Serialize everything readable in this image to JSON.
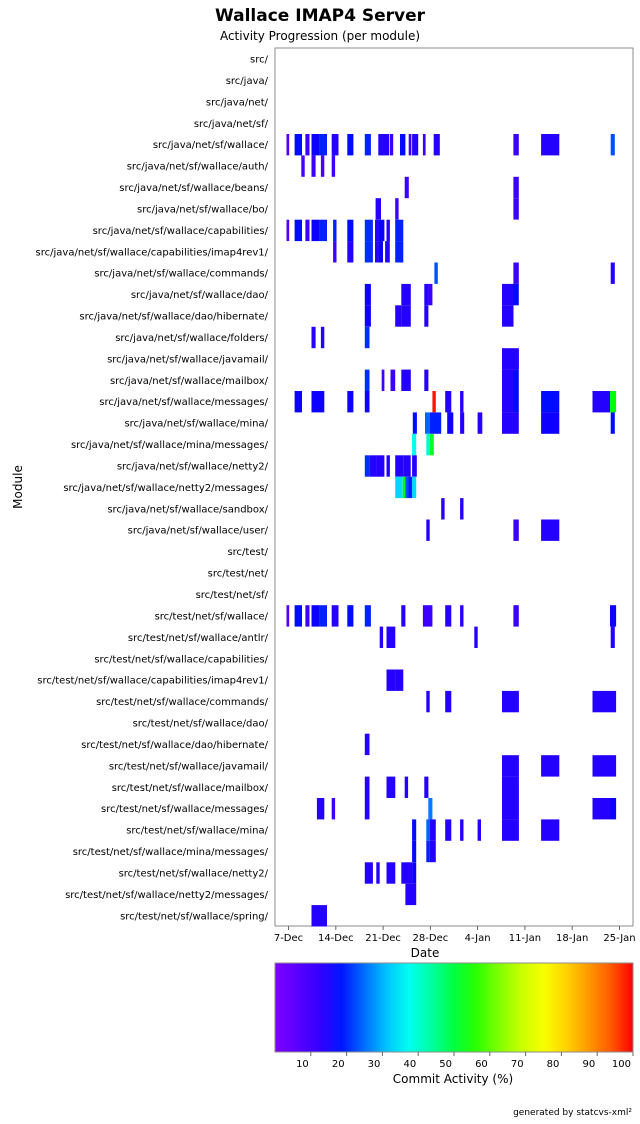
{
  "chart_data": {
    "type": "heatmap",
    "title": "Wallace IMAP4 Server",
    "subtitle": "Activity Progression (per module)",
    "xlabel": "Date",
    "ylabel": "Module",
    "colorbar_label": "Commit Activity (%)",
    "colorbar_ticks": [
      "10",
      "20",
      "30",
      "40",
      "50",
      "60",
      "70",
      "80",
      "90",
      "100"
    ],
    "x_tick_labels": [
      "7-Dec",
      "14-Dec",
      "21-Dec",
      "28-Dec",
      "4-Jan",
      "11-Jan",
      "18-Jan",
      "25-Jan"
    ],
    "x_range_days": [
      -2,
      51
    ],
    "modules": [
      "src/",
      "src/java/",
      "src/java/net/",
      "src/java/net/sf/",
      "src/java/net/sf/wallace/",
      "src/java/net/sf/wallace/auth/",
      "src/java/net/sf/wallace/beans/",
      "src/java/net/sf/wallace/bo/",
      "src/java/net/sf/wallace/capabilities/",
      "src/java/net/sf/wallace/capabilities/imap4rev1/",
      "src/java/net/sf/wallace/commands/",
      "src/java/net/sf/wallace/dao/",
      "src/java/net/sf/wallace/dao/hibernate/",
      "src/java/net/sf/wallace/folders/",
      "src/java/net/sf/wallace/javamail/",
      "src/java/net/sf/wallace/mailbox/",
      "src/java/net/sf/wallace/messages/",
      "src/java/net/sf/wallace/mina/",
      "src/java/net/sf/wallace/mina/messages/",
      "src/java/net/sf/wallace/netty2/",
      "src/java/net/sf/wallace/netty2/messages/",
      "src/java/net/sf/wallace/sandbox/",
      "src/java/net/sf/wallace/user/",
      "src/test/",
      "src/test/net/",
      "src/test/net/sf/",
      "src/test/net/sf/wallace/",
      "src/test/net/sf/wallace/antlr/",
      "src/test/net/sf/wallace/capabilities/",
      "src/test/net/sf/wallace/capabilities/imap4rev1/",
      "src/test/net/sf/wallace/commands/",
      "src/test/net/sf/wallace/dao/",
      "src/test/net/sf/wallace/dao/hibernate/",
      "src/test/net/sf/wallace/javamail/",
      "src/test/net/sf/wallace/mailbox/",
      "src/test/net/sf/wallace/messages/",
      "src/test/net/sf/wallace/mina/",
      "src/test/net/sf/wallace/mina/messages/",
      "src/test/net/sf/wallace/netty2/",
      "src/test/net/sf/wallace/netty2/messages/",
      "src/test/net/sf/wallace/spring/"
    ],
    "cells_note": "[module_index, start_day, end_day, activity_percent]; day 0 = 7-Dec",
    "cells": [
      [
        4,
        -0.3,
        0.1,
        4
      ],
      [
        4,
        0.9,
        2.0,
        12
      ],
      [
        4,
        2.5,
        3.1,
        6
      ],
      [
        4,
        3.4,
        4.6,
        10
      ],
      [
        4,
        4.6,
        5.7,
        14
      ],
      [
        4,
        6.4,
        7.4,
        8
      ],
      [
        4,
        8.7,
        9.6,
        12
      ],
      [
        4,
        11.3,
        12.2,
        14
      ],
      [
        4,
        13.3,
        14.9,
        8
      ],
      [
        4,
        15.0,
        15.5,
        6
      ],
      [
        4,
        16.5,
        17.3,
        12
      ],
      [
        4,
        17.8,
        18.2,
        6
      ],
      [
        4,
        18.3,
        19.2,
        8
      ],
      [
        4,
        19.9,
        20.3,
        6
      ],
      [
        4,
        21.5,
        22.4,
        8
      ],
      [
        4,
        33.3,
        34.1,
        6
      ],
      [
        4,
        37.4,
        40.1,
        8
      ],
      [
        4,
        47.7,
        48.3,
        18
      ],
      [
        5,
        1.9,
        2.4,
        5
      ],
      [
        5,
        3.4,
        4.0,
        6
      ],
      [
        5,
        4.8,
        5.3,
        5
      ],
      [
        5,
        6.4,
        6.9,
        6
      ],
      [
        6,
        17.2,
        17.8,
        6
      ],
      [
        6,
        33.3,
        34.1,
        6
      ],
      [
        7,
        12.9,
        13.7,
        8
      ],
      [
        7,
        15.8,
        16.3,
        6
      ],
      [
        7,
        33.3,
        34.1,
        6
      ],
      [
        8,
        -0.3,
        0.1,
        4
      ],
      [
        8,
        0.9,
        2.0,
        12
      ],
      [
        8,
        2.5,
        3.1,
        6
      ],
      [
        8,
        3.4,
        4.6,
        10
      ],
      [
        8,
        4.6,
        5.7,
        14
      ],
      [
        8,
        6.6,
        7.1,
        14
      ],
      [
        8,
        8.7,
        9.6,
        12
      ],
      [
        8,
        11.3,
        12.5,
        15
      ],
      [
        8,
        12.8,
        13.3,
        8
      ],
      [
        8,
        13.3,
        14.2,
        10
      ],
      [
        8,
        14.5,
        15.0,
        8
      ],
      [
        8,
        15.8,
        17.0,
        14
      ],
      [
        9,
        6.6,
        7.1,
        6
      ],
      [
        9,
        8.7,
        9.6,
        8
      ],
      [
        9,
        11.3,
        12.5,
        15
      ],
      [
        9,
        12.8,
        13.3,
        8
      ],
      [
        9,
        13.3,
        14.0,
        10
      ],
      [
        9,
        14.3,
        15.0,
        8
      ],
      [
        9,
        15.8,
        17.0,
        14
      ],
      [
        10,
        21.6,
        22.1,
        18
      ],
      [
        10,
        33.3,
        34.1,
        6
      ],
      [
        10,
        47.7,
        48.3,
        8
      ],
      [
        11,
        11.3,
        12.2,
        10
      ],
      [
        11,
        16.7,
        18.1,
        8
      ],
      [
        11,
        20.1,
        20.7,
        8
      ],
      [
        11,
        20.7,
        21.3,
        6
      ],
      [
        11,
        31.6,
        33.3,
        8
      ],
      [
        11,
        33.3,
        34.1,
        12
      ],
      [
        12,
        11.3,
        12.2,
        10
      ],
      [
        12,
        15.8,
        16.7,
        8
      ],
      [
        12,
        16.7,
        18.1,
        8
      ],
      [
        12,
        20.1,
        20.7,
        8
      ],
      [
        12,
        31.6,
        33.3,
        8
      ],
      [
        13,
        3.4,
        4.0,
        8
      ],
      [
        13,
        4.8,
        5.3,
        8
      ],
      [
        13,
        11.3,
        12.0,
        15
      ],
      [
        14,
        31.6,
        34.1,
        8
      ],
      [
        15,
        11.3,
        12.0,
        15
      ],
      [
        15,
        13.8,
        14.2,
        6
      ],
      [
        15,
        15.1,
        15.8,
        6
      ],
      [
        15,
        16.7,
        18.1,
        8
      ],
      [
        15,
        20.1,
        20.7,
        8
      ],
      [
        15,
        31.6,
        33.3,
        8
      ],
      [
        15,
        33.3,
        34.1,
        12
      ],
      [
        16,
        0.9,
        2.0,
        10
      ],
      [
        16,
        3.4,
        4.0,
        10
      ],
      [
        16,
        4.0,
        5.3,
        10
      ],
      [
        16,
        8.7,
        9.6,
        10
      ],
      [
        16,
        11.3,
        12.0,
        10
      ],
      [
        16,
        21.3,
        21.8,
        98
      ],
      [
        16,
        23.2,
        24.1,
        8
      ],
      [
        16,
        25.4,
        25.9,
        8
      ],
      [
        16,
        31.6,
        33.3,
        8
      ],
      [
        16,
        33.3,
        34.1,
        12
      ],
      [
        16,
        37.4,
        40.1,
        12
      ],
      [
        16,
        45.0,
        47.6,
        8
      ],
      [
        16,
        47.6,
        48.5,
        55
      ],
      [
        17,
        18.4,
        19.0,
        12
      ],
      [
        17,
        20.2,
        20.9,
        20
      ],
      [
        17,
        20.9,
        22.6,
        14
      ],
      [
        17,
        23.5,
        24.4,
        10
      ],
      [
        17,
        25.4,
        26.0,
        8
      ],
      [
        17,
        28.0,
        28.7,
        8
      ],
      [
        17,
        31.6,
        33.3,
        8
      ],
      [
        17,
        33.3,
        34.1,
        8
      ],
      [
        17,
        37.4,
        40.1,
        10
      ],
      [
        17,
        47.7,
        48.3,
        12
      ],
      [
        18,
        18.3,
        18.9,
        35
      ],
      [
        18,
        20.4,
        20.9,
        38
      ],
      [
        18,
        20.9,
        21.5,
        52
      ],
      [
        19,
        11.3,
        12.0,
        15
      ],
      [
        19,
        12.0,
        13.0,
        8
      ],
      [
        19,
        13.0,
        14.2,
        8
      ],
      [
        19,
        14.5,
        15.0,
        8
      ],
      [
        19,
        15.8,
        17.0,
        8
      ],
      [
        19,
        17.0,
        18.1,
        8
      ],
      [
        19,
        18.3,
        19.0,
        8
      ],
      [
        20,
        15.8,
        16.9,
        30
      ],
      [
        20,
        16.9,
        17.3,
        55
      ],
      [
        20,
        17.3,
        17.7,
        18
      ],
      [
        20,
        17.7,
        18.3,
        14
      ],
      [
        20,
        18.3,
        18.9,
        30
      ],
      [
        21,
        22.6,
        23.1,
        8
      ],
      [
        21,
        25.4,
        25.9,
        8
      ],
      [
        22,
        20.4,
        20.9,
        8
      ],
      [
        22,
        33.3,
        34.1,
        6
      ],
      [
        22,
        37.4,
        40.1,
        8
      ],
      [
        26,
        -0.3,
        0.1,
        4
      ],
      [
        26,
        0.9,
        2.0,
        12
      ],
      [
        26,
        2.5,
        3.1,
        6
      ],
      [
        26,
        3.4,
        4.6,
        10
      ],
      [
        26,
        4.6,
        5.7,
        14
      ],
      [
        26,
        6.4,
        7.4,
        8
      ],
      [
        26,
        8.7,
        9.6,
        12
      ],
      [
        26,
        11.3,
        12.2,
        14
      ],
      [
        26,
        16.7,
        17.3,
        8
      ],
      [
        26,
        19.9,
        21.3,
        6
      ],
      [
        26,
        23.2,
        24.1,
        8
      ],
      [
        26,
        25.4,
        25.9,
        8
      ],
      [
        26,
        33.3,
        34.1,
        6
      ],
      [
        26,
        47.6,
        48.5,
        10
      ],
      [
        27,
        13.5,
        14.0,
        8
      ],
      [
        27,
        14.5,
        15.8,
        8
      ],
      [
        27,
        27.5,
        28.0,
        8
      ],
      [
        27,
        47.7,
        48.3,
        8
      ],
      [
        29,
        14.5,
        15.8,
        8
      ],
      [
        29,
        15.8,
        17.0,
        8
      ],
      [
        30,
        20.4,
        20.9,
        8
      ],
      [
        30,
        23.2,
        24.1,
        8
      ],
      [
        30,
        31.6,
        34.1,
        8
      ],
      [
        30,
        45.0,
        48.5,
        8
      ],
      [
        32,
        11.3,
        12.0,
        8
      ],
      [
        33,
        31.6,
        34.1,
        8
      ],
      [
        33,
        37.4,
        40.1,
        8
      ],
      [
        33,
        45.0,
        48.5,
        8
      ],
      [
        34,
        11.3,
        12.0,
        8
      ],
      [
        34,
        14.5,
        15.8,
        8
      ],
      [
        34,
        17.2,
        17.7,
        8
      ],
      [
        34,
        20.1,
        20.7,
        8
      ],
      [
        34,
        31.6,
        34.1,
        8
      ],
      [
        35,
        4.2,
        5.3,
        8
      ],
      [
        35,
        6.4,
        6.9,
        6
      ],
      [
        35,
        11.3,
        12.0,
        8
      ],
      [
        35,
        20.7,
        21.3,
        22
      ],
      [
        35,
        31.6,
        34.1,
        8
      ],
      [
        35,
        45.0,
        47.6,
        8
      ],
      [
        35,
        47.6,
        48.5,
        10
      ],
      [
        36,
        18.3,
        18.9,
        12
      ],
      [
        36,
        20.4,
        20.9,
        20
      ],
      [
        36,
        20.9,
        21.8,
        8
      ],
      [
        36,
        23.2,
        24.1,
        8
      ],
      [
        36,
        25.4,
        25.9,
        8
      ],
      [
        36,
        28.0,
        28.5,
        8
      ],
      [
        36,
        31.6,
        34.1,
        8
      ],
      [
        36,
        37.4,
        40.1,
        8
      ],
      [
        37,
        18.3,
        18.9,
        12
      ],
      [
        37,
        20.4,
        20.9,
        14
      ],
      [
        37,
        20.9,
        21.8,
        8
      ],
      [
        38,
        11.3,
        12.5,
        8
      ],
      [
        38,
        13.0,
        13.5,
        8
      ],
      [
        38,
        14.5,
        15.8,
        8
      ],
      [
        38,
        16.7,
        18.3,
        8
      ],
      [
        38,
        18.3,
        18.9,
        10
      ],
      [
        39,
        17.3,
        18.9,
        8
      ],
      [
        40,
        3.4,
        5.7,
        8
      ]
    ]
  },
  "footer": "generated by statcvs-xml²"
}
